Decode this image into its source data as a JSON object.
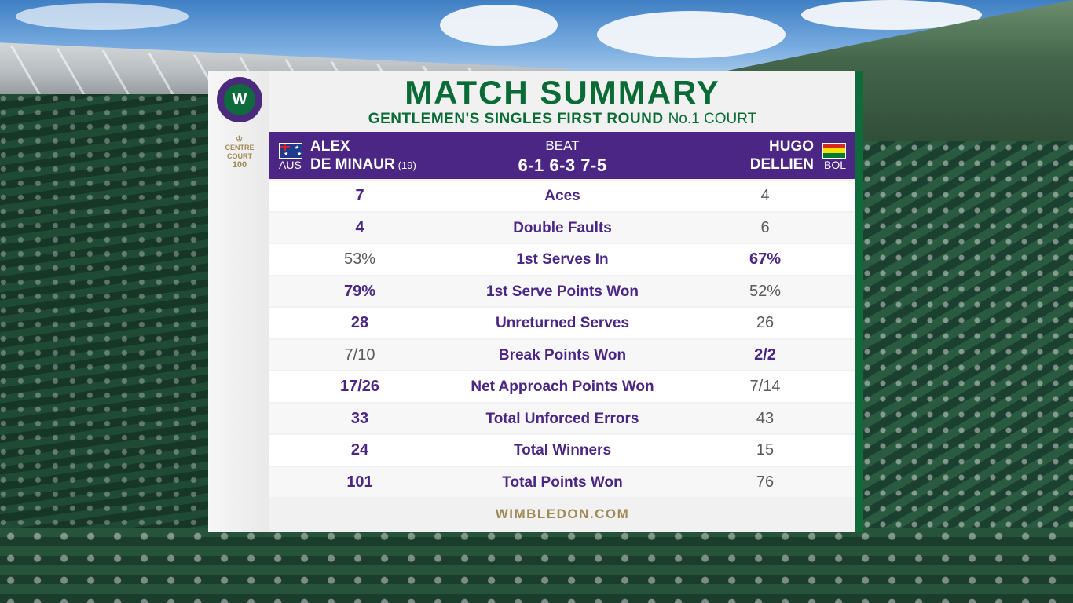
{
  "header": {
    "title": "MATCH SUMMARY",
    "round": "GENTLEMEN'S SINGLES FIRST ROUND",
    "court": "No.1 COURT"
  },
  "logos": {
    "championships_logo": "W",
    "centre_court_line1": "CENTRE",
    "centre_court_line2": "COURT",
    "centre_court_line3": "100"
  },
  "match": {
    "player1": {
      "first": "ALEX",
      "last": "DE MINAUR",
      "seed": "(19)",
      "country": "AUS"
    },
    "result_word": "BEAT",
    "score": "6-1 6-3 7-5",
    "player2": {
      "first": "HUGO",
      "last": "DELLIEN",
      "country": "BOL"
    }
  },
  "colors": {
    "purple": "#4b2684",
    "green": "#0a6b37",
    "gold": "#a18a56"
  },
  "stats": [
    {
      "label": "Aces",
      "p1": "7",
      "p2": "4",
      "leader": "p1"
    },
    {
      "label": "Double Faults",
      "p1": "4",
      "p2": "6",
      "leader": "p1"
    },
    {
      "label": "1st Serves In",
      "p1": "53%",
      "p2": "67%",
      "leader": "p2"
    },
    {
      "label": "1st Serve Points Won",
      "p1": "79%",
      "p2": "52%",
      "leader": "p1"
    },
    {
      "label": "Unreturned Serves",
      "p1": "28",
      "p2": "26",
      "leader": "p1"
    },
    {
      "label": "Break Points Won",
      "p1": "7/10",
      "p2": "2/2",
      "leader": "p2"
    },
    {
      "label": "Net Approach Points Won",
      "p1": "17/26",
      "p2": "7/14",
      "leader": "p1"
    },
    {
      "label": "Total Unforced Errors",
      "p1": "33",
      "p2": "43",
      "leader": "p1"
    },
    {
      "label": "Total Winners",
      "p1": "24",
      "p2": "15",
      "leader": "p1"
    },
    {
      "label": "Total Points Won",
      "p1": "101",
      "p2": "76",
      "leader": "p1"
    }
  ],
  "footer": {
    "site": "WIMBLEDON.COM"
  }
}
